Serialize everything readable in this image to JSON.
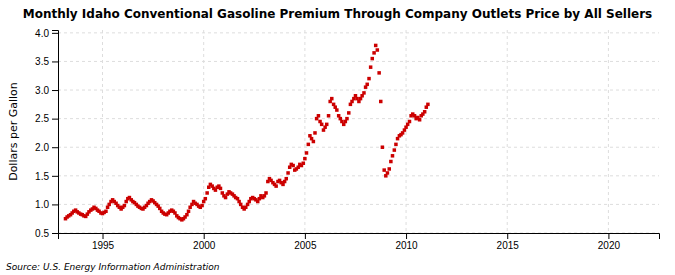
{
  "chart_data": {
    "type": "scatter",
    "title": "Monthly Idaho Conventional Gasoline Premium Through Company Outlets Price by All Sellers",
    "ylabel": "Dollars per Gallon",
    "annotations": [
      "Source: U.S. Energy Information Administration"
    ],
    "color": "#cc0000",
    "marker": "square",
    "grid": true,
    "xlim": [
      1992.8,
      2022.5
    ],
    "ylim": [
      0.5,
      4.05
    ],
    "xticks": [
      1995,
      2000,
      2005,
      2010,
      2015,
      2020
    ],
    "yticks": [
      0.5,
      {
        "value": 1.0,
        "label": "1.0"
      },
      1.5,
      {
        "value": 2.0,
        "label": "2.0"
      },
      2.5,
      {
        "value": 3.0,
        "label": "3.0"
      },
      3.5,
      {
        "value": 4.0,
        "label": "4.0"
      }
    ],
    "x": [
      1993.17,
      1993.25,
      1993.33,
      1993.42,
      1993.5,
      1993.58,
      1993.67,
      1993.75,
      1993.83,
      1993.92,
      1994.0,
      1994.08,
      1994.17,
      1994.25,
      1994.33,
      1994.42,
      1994.5,
      1994.58,
      1994.67,
      1994.75,
      1994.83,
      1994.92,
      1995.0,
      1995.08,
      1995.17,
      1995.25,
      1995.33,
      1995.42,
      1995.5,
      1995.58,
      1995.67,
      1995.75,
      1995.83,
      1995.92,
      1996.0,
      1996.08,
      1996.17,
      1996.25,
      1996.33,
      1996.42,
      1996.5,
      1996.58,
      1996.67,
      1996.75,
      1996.83,
      1996.92,
      1997.0,
      1997.08,
      1997.17,
      1997.25,
      1997.33,
      1997.42,
      1997.5,
      1997.58,
      1997.67,
      1997.75,
      1997.83,
      1997.92,
      1998.0,
      1998.08,
      1998.17,
      1998.25,
      1998.33,
      1998.42,
      1998.5,
      1998.58,
      1998.67,
      1998.75,
      1998.83,
      1998.92,
      1999.0,
      1999.08,
      1999.17,
      1999.25,
      1999.33,
      1999.42,
      1999.5,
      1999.58,
      1999.67,
      1999.75,
      1999.83,
      1999.92,
      2000.0,
      2000.08,
      2000.17,
      2000.25,
      2000.33,
      2000.42,
      2000.5,
      2000.58,
      2000.67,
      2000.75,
      2000.83,
      2000.92,
      2001.0,
      2001.08,
      2001.17,
      2001.25,
      2001.33,
      2001.42,
      2001.5,
      2001.58,
      2001.67,
      2001.75,
      2001.83,
      2001.92,
      2002.0,
      2002.08,
      2002.17,
      2002.25,
      2002.33,
      2002.42,
      2002.5,
      2002.58,
      2002.67,
      2002.75,
      2002.83,
      2002.92,
      2003.0,
      2003.08,
      2003.17,
      2003.25,
      2003.33,
      2003.42,
      2003.5,
      2003.58,
      2003.67,
      2003.75,
      2003.83,
      2003.92,
      2004.0,
      2004.08,
      2004.17,
      2004.25,
      2004.33,
      2004.42,
      2004.5,
      2004.58,
      2004.67,
      2004.75,
      2004.83,
      2004.92,
      2005.0,
      2005.08,
      2005.17,
      2005.25,
      2005.33,
      2005.42,
      2005.5,
      2005.58,
      2005.67,
      2005.75,
      2005.83,
      2005.92,
      2006.0,
      2006.08,
      2006.17,
      2006.25,
      2006.33,
      2006.42,
      2006.5,
      2006.58,
      2006.67,
      2006.75,
      2006.83,
      2006.92,
      2007.0,
      2007.08,
      2007.17,
      2007.25,
      2007.33,
      2007.42,
      2007.5,
      2007.58,
      2007.67,
      2007.75,
      2007.83,
      2007.92,
      2008.0,
      2008.08,
      2008.17,
      2008.25,
      2008.33,
      2008.42,
      2008.5,
      2008.58,
      2008.67,
      2008.75,
      2008.83,
      2008.92,
      2009.0,
      2009.08,
      2009.17,
      2009.25,
      2009.33,
      2009.42,
      2009.5,
      2009.58,
      2009.67,
      2009.75,
      2009.83,
      2009.92,
      2010.0,
      2010.08,
      2010.17,
      2010.25,
      2010.33,
      2010.42,
      2010.5,
      2010.58,
      2010.67,
      2010.75,
      2010.83,
      2010.92,
      2011.0,
      2011.08
    ],
    "values": [
      0.75,
      0.78,
      0.8,
      0.82,
      0.85,
      0.88,
      0.9,
      0.87,
      0.85,
      0.83,
      0.82,
      0.8,
      0.79,
      0.83,
      0.87,
      0.9,
      0.92,
      0.95,
      0.93,
      0.9,
      0.88,
      0.85,
      0.84,
      0.86,
      0.88,
      0.95,
      1.0,
      1.05,
      1.08,
      1.05,
      1.02,
      0.98,
      0.95,
      0.92,
      0.95,
      0.98,
      1.05,
      1.1,
      1.12,
      1.08,
      1.05,
      1.03,
      1.0,
      0.97,
      0.95,
      0.93,
      0.92,
      0.95,
      0.98,
      1.02,
      1.05,
      1.08,
      1.06,
      1.03,
      1.0,
      0.97,
      0.93,
      0.88,
      0.85,
      0.83,
      0.82,
      0.85,
      0.88,
      0.9,
      0.88,
      0.85,
      0.8,
      0.77,
      0.75,
      0.73,
      0.75,
      0.78,
      0.82,
      0.88,
      0.95,
      1.0,
      1.05,
      1.02,
      1.0,
      0.97,
      0.95,
      0.98,
      1.05,
      1.1,
      1.2,
      1.3,
      1.35,
      1.32,
      1.28,
      1.25,
      1.3,
      1.32,
      1.28,
      1.2,
      1.15,
      1.12,
      1.18,
      1.22,
      1.2,
      1.18,
      1.15,
      1.12,
      1.1,
      1.05,
      1.0,
      0.95,
      0.92,
      0.95,
      1.0,
      1.05,
      1.1,
      1.12,
      1.1,
      1.08,
      1.05,
      1.1,
      1.15,
      1.12,
      1.15,
      1.2,
      1.4,
      1.45,
      1.42,
      1.38,
      1.35,
      1.32,
      1.4,
      1.42,
      1.38,
      1.35,
      1.4,
      1.45,
      1.55,
      1.65,
      1.7,
      1.68,
      1.6,
      1.62,
      1.65,
      1.7,
      1.68,
      1.72,
      1.8,
      1.9,
      2.05,
      2.2,
      2.15,
      2.1,
      2.25,
      2.5,
      2.55,
      2.45,
      2.4,
      2.3,
      2.35,
      2.4,
      2.55,
      2.8,
      2.85,
      2.75,
      2.7,
      2.65,
      2.55,
      2.5,
      2.45,
      2.4,
      2.45,
      2.5,
      2.6,
      2.75,
      2.8,
      2.85,
      2.9,
      2.85,
      2.8,
      2.85,
      2.9,
      2.95,
      3.05,
      3.1,
      3.2,
      3.4,
      3.55,
      3.65,
      3.78,
      3.7,
      3.3,
      2.8,
      2.0,
      1.6,
      1.5,
      1.55,
      1.62,
      1.75,
      1.85,
      1.95,
      2.05,
      2.15,
      2.2,
      2.22,
      2.25,
      2.3,
      2.35,
      2.4,
      2.45,
      2.55,
      2.58,
      2.55,
      2.5,
      2.52,
      2.48,
      2.55,
      2.58,
      2.62,
      2.7,
      2.75
    ]
  }
}
